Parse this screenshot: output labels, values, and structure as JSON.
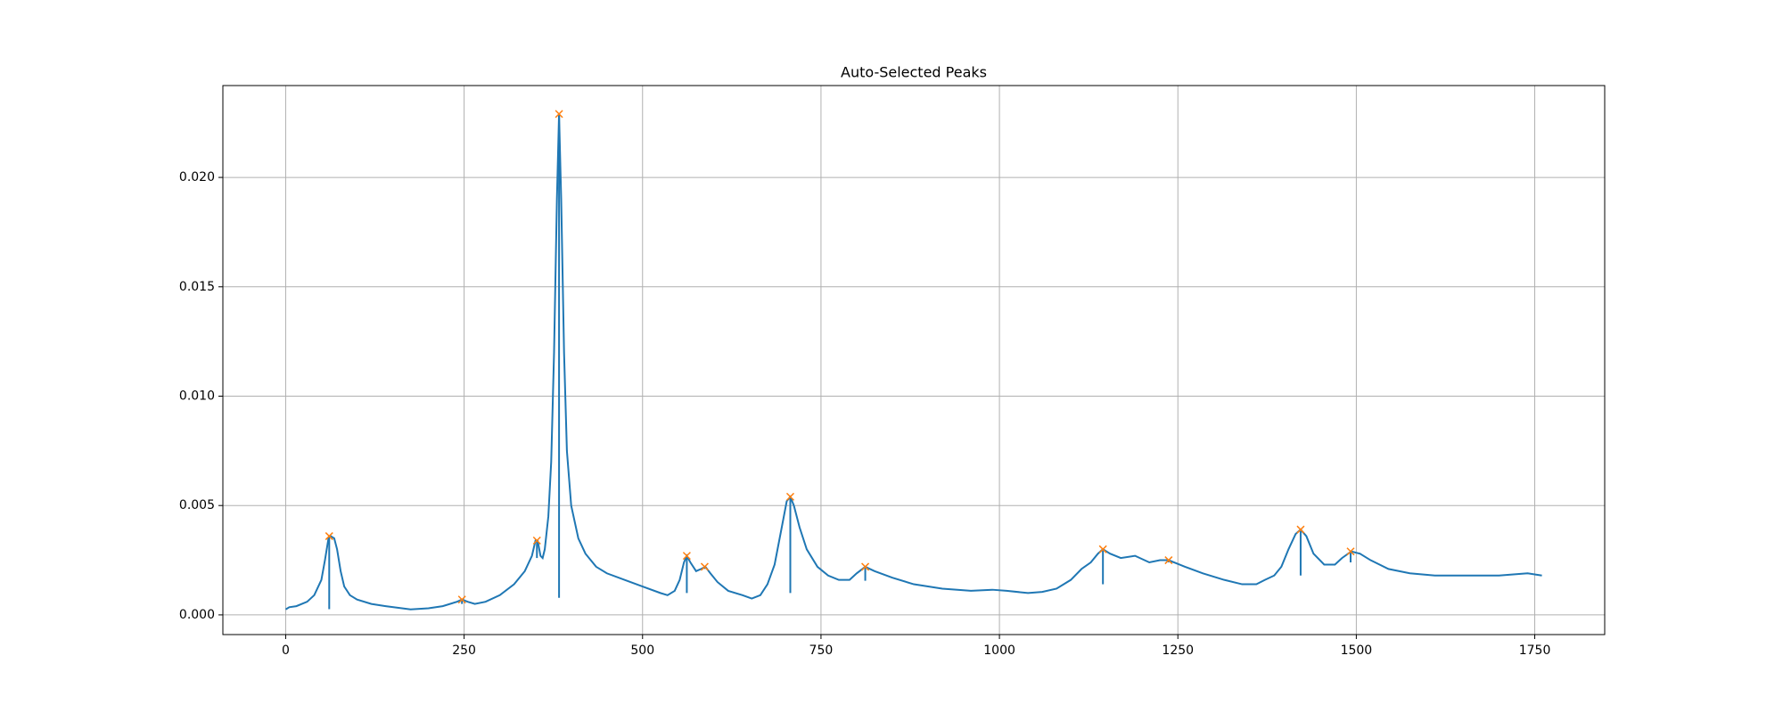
{
  "chart_data": {
    "type": "line",
    "title": "Auto-Selected Peaks",
    "x": [
      0,
      5,
      15,
      30,
      40,
      50,
      55,
      60,
      63,
      68,
      72,
      77,
      82,
      90,
      100,
      120,
      140,
      175,
      200,
      220,
      240,
      247,
      255,
      265,
      280,
      300,
      320,
      335,
      345,
      350,
      353,
      357,
      360,
      363,
      368,
      372,
      376,
      380,
      383,
      386,
      390,
      394,
      400,
      410,
      420,
      435,
      450,
      475,
      500,
      525,
      535,
      545,
      552,
      558,
      562,
      567,
      575,
      582,
      588,
      595,
      605,
      620,
      640,
      653,
      665,
      675,
      685,
      695,
      702,
      707,
      712,
      720,
      730,
      745,
      760,
      775,
      790,
      800,
      812,
      825,
      850,
      880,
      920,
      960,
      990,
      1010,
      1040,
      1060,
      1080,
      1100,
      1115,
      1128,
      1138,
      1145,
      1155,
      1170,
      1190,
      1210,
      1225,
      1237,
      1260,
      1285,
      1315,
      1340,
      1360,
      1372,
      1385,
      1395,
      1405,
      1415,
      1422,
      1430,
      1440,
      1455,
      1470,
      1480,
      1493,
      1505,
      1520,
      1545,
      1575,
      1610,
      1640,
      1660,
      1700,
      1740,
      1760
    ],
    "series": [
      {
        "color": "#1f77b4",
        "values": [
          0.00025,
          0.00035,
          0.0004,
          0.0006,
          0.0009,
          0.0016,
          0.0025,
          0.0035,
          0.0036,
          0.0035,
          0.003,
          0.002,
          0.0013,
          0.0009,
          0.0007,
          0.0005,
          0.0004,
          0.00025,
          0.0003,
          0.0004,
          0.0006,
          0.0007,
          0.0006,
          0.0005,
          0.0006,
          0.0009,
          0.0014,
          0.002,
          0.0027,
          0.0034,
          0.0034,
          0.0027,
          0.0026,
          0.003,
          0.0045,
          0.007,
          0.012,
          0.019,
          0.0229,
          0.019,
          0.012,
          0.0075,
          0.005,
          0.0035,
          0.0028,
          0.0022,
          0.0019,
          0.0016,
          0.0013,
          0.001,
          0.0009,
          0.0011,
          0.0016,
          0.0024,
          0.0027,
          0.0024,
          0.002,
          0.0021,
          0.0022,
          0.0019,
          0.0015,
          0.0011,
          0.0009,
          0.00075,
          0.0009,
          0.0014,
          0.0023,
          0.004,
          0.0052,
          0.0054,
          0.005,
          0.004,
          0.003,
          0.0022,
          0.0018,
          0.0016,
          0.0016,
          0.0019,
          0.0022,
          0.002,
          0.0017,
          0.0014,
          0.0012,
          0.0011,
          0.00115,
          0.0011,
          0.001,
          0.00105,
          0.0012,
          0.0016,
          0.0021,
          0.0024,
          0.0028,
          0.003,
          0.0028,
          0.0026,
          0.0027,
          0.0024,
          0.0025,
          0.0025,
          0.0022,
          0.0019,
          0.0016,
          0.0014,
          0.0014,
          0.0016,
          0.0018,
          0.0022,
          0.003,
          0.0037,
          0.0039,
          0.0036,
          0.0028,
          0.0023,
          0.0023,
          0.0026,
          0.0029,
          0.0028,
          0.0025,
          0.0021,
          0.0019,
          0.0018,
          0.0018,
          0.0018,
          0.0018,
          0.0019,
          0.0018
        ]
      }
    ],
    "peaks": {
      "color": "#ff7f0e",
      "stem_color": "#1f77b4",
      "x": [
        61,
        247,
        352,
        383,
        562,
        587,
        707,
        812,
        1145,
        1237,
        1422,
        1492
      ],
      "values": [
        0.0036,
        0.0007,
        0.0034,
        0.0229,
        0.0027,
        0.0022,
        0.0054,
        0.0022,
        0.003,
        0.0025,
        0.0039,
        0.0029
      ],
      "stem_bottom": [
        0.00026,
        0.0005,
        0.0026,
        0.00078,
        0.001,
        0.0021,
        0.001,
        0.00156,
        0.0014,
        0.0024,
        0.0018,
        0.0024
      ]
    },
    "xlim": [
      -88,
      1848
    ],
    "ylim": [
      -0.0009,
      0.0242
    ],
    "xticks": [
      0,
      250,
      500,
      750,
      1000,
      1250,
      1500,
      1750
    ],
    "yticks": [
      {
        "value": 0,
        "label": "0.000"
      },
      {
        "value": 0.005,
        "label": "0.005"
      },
      {
        "value": 0.01,
        "label": "0.010"
      },
      {
        "value": 0.015,
        "label": "0.015"
      },
      {
        "value": 0.02,
        "label": "0.020"
      }
    ],
    "grid": true
  }
}
